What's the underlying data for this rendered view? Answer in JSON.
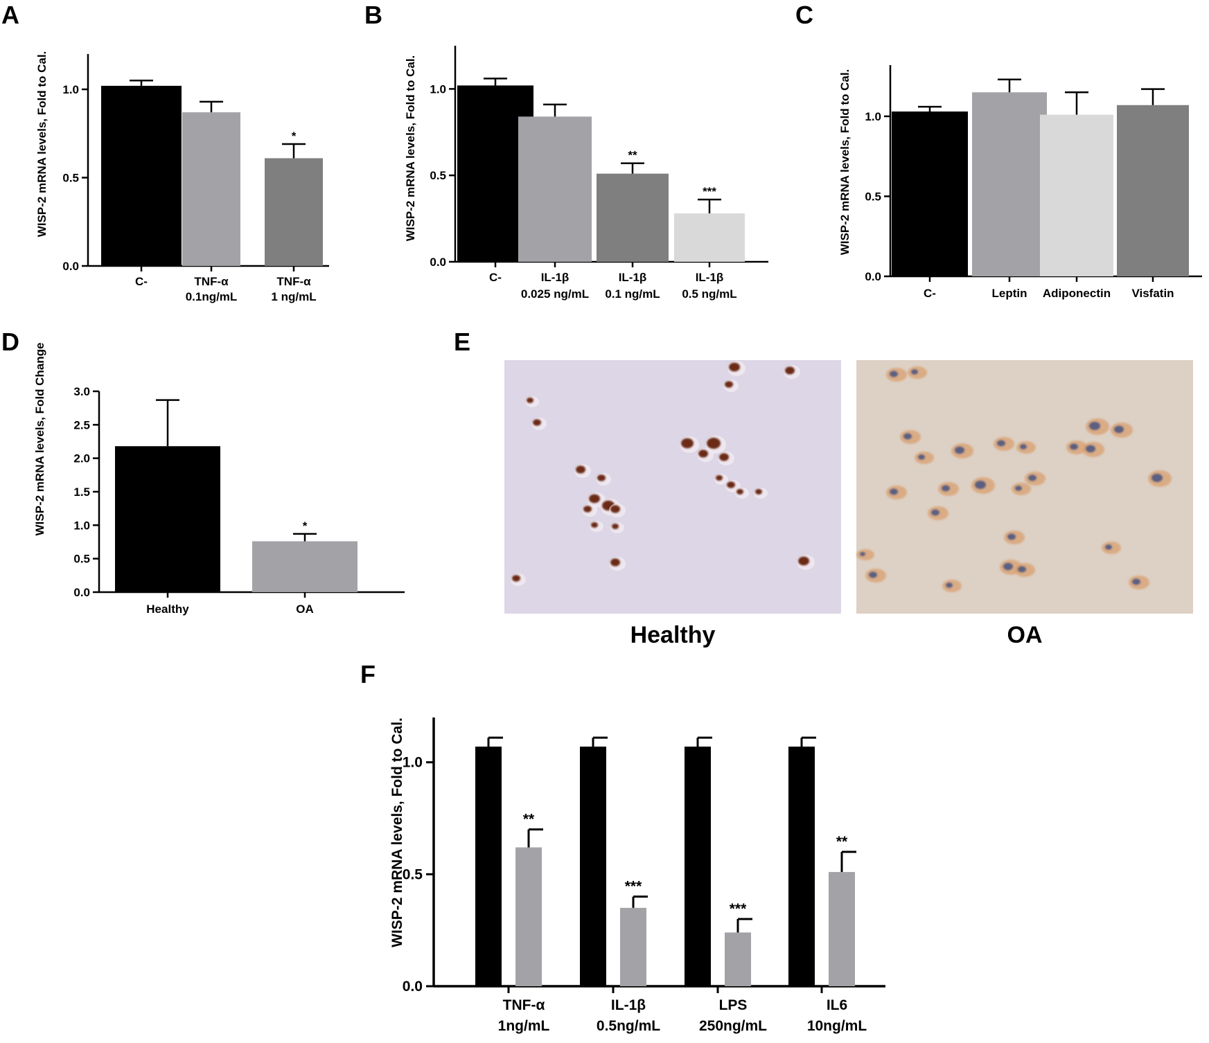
{
  "chart_data": [
    {
      "panel": "A",
      "type": "bar",
      "ylabel": "WISP-2 mRNA levels, Fold to Cal.",
      "ylim": [
        0,
        1.2
      ],
      "yticks": [
        "0.0",
        "0.5",
        "1.0"
      ],
      "bars": [
        {
          "label": [
            "C-"
          ],
          "value": 1.02,
          "error": 0.03,
          "color": "#000000",
          "sig": ""
        },
        {
          "label": [
            "TNF-α",
            "0.1ng/mL"
          ],
          "value": 0.87,
          "error": 0.06,
          "color": "#a3a3a7",
          "sig": ""
        },
        {
          "label": [
            "TNF-α",
            "1 ng/mL"
          ],
          "value": 0.61,
          "error": 0.08,
          "color": "#7f7f7f",
          "sig": "*"
        }
      ]
    },
    {
      "panel": "B",
      "type": "bar",
      "ylabel": "WISP-2 mRNA levels, Fold to Cal.",
      "ylim": [
        0,
        1.25
      ],
      "yticks": [
        "0.0",
        "0.5",
        "1.0"
      ],
      "bars": [
        {
          "label": [
            "C-"
          ],
          "value": 1.02,
          "error": 0.04,
          "color": "#000000",
          "sig": ""
        },
        {
          "label": [
            "IL-1β",
            "0.025 ng/mL"
          ],
          "value": 0.84,
          "error": 0.07,
          "color": "#a3a3a7",
          "sig": ""
        },
        {
          "label": [
            "IL-1β",
            "0.1 ng/mL"
          ],
          "value": 0.51,
          "error": 0.06,
          "color": "#7f7f7f",
          "sig": "**"
        },
        {
          "label": [
            "IL-1β",
            "0.5 ng/mL"
          ],
          "value": 0.28,
          "error": 0.08,
          "color": "#d9d9d9",
          "sig": "***"
        }
      ]
    },
    {
      "panel": "C",
      "type": "bar",
      "ylabel": "WISP-2 mRNA levels, Fold to Cal.",
      "ylim": [
        0,
        1.32
      ],
      "yticks": [
        "0.0",
        "0.5",
        "1.0"
      ],
      "bars": [
        {
          "label": [
            "C-"
          ],
          "value": 1.03,
          "error": 0.03,
          "color": "#000000",
          "sig": ""
        },
        {
          "label": [
            "Leptin"
          ],
          "value": 1.15,
          "error": 0.08,
          "color": "#a3a3a7",
          "sig": ""
        },
        {
          "label": [
            "Adiponectin"
          ],
          "value": 1.01,
          "error": 0.14,
          "color": "#d9d9d9",
          "sig": ""
        },
        {
          "label": [
            "Visfatin"
          ],
          "value": 1.07,
          "error": 0.1,
          "color": "#7f7f7f",
          "sig": ""
        }
      ]
    },
    {
      "panel": "D",
      "type": "bar",
      "ylabel": "WISP-2 mRNA levels, Fold Change",
      "ylim": [
        0,
        3.0
      ],
      "yticks": [
        "0.0",
        "0.5",
        "1.0",
        "1.5",
        "2.0",
        "2.5",
        "3.0"
      ],
      "bars": [
        {
          "label": [
            "Healthy"
          ],
          "value": 2.18,
          "error": 0.69,
          "color": "#000000",
          "sig": ""
        },
        {
          "label": [
            "OA"
          ],
          "value": 0.76,
          "error": 0.11,
          "color": "#a3a3a7",
          "sig": "*"
        }
      ]
    },
    {
      "panel": "F",
      "type": "bar",
      "ylabel": "WISP-2 mRNA levels, Fold to Cal.",
      "ylim": [
        0,
        1.2
      ],
      "yticks": [
        "0.0",
        "0.5",
        "1.0"
      ],
      "groups": [
        {
          "label": [
            "TNF-α",
            "1ng/mL"
          ],
          "bars": [
            {
              "value": 1.07,
              "error": 0.04,
              "color": "#000000",
              "sig": ""
            },
            {
              "value": 0.62,
              "error": 0.08,
              "color": "#a3a3a7",
              "sig": "**"
            }
          ]
        },
        {
          "label": [
            "IL-1β",
            "0.5ng/mL"
          ],
          "bars": [
            {
              "value": 1.07,
              "error": 0.04,
              "color": "#000000",
              "sig": ""
            },
            {
              "value": 0.35,
              "error": 0.05,
              "color": "#a3a3a7",
              "sig": "***"
            }
          ]
        },
        {
          "label": [
            "LPS",
            "250ng/mL"
          ],
          "bars": [
            {
              "value": 1.07,
              "error": 0.04,
              "color": "#000000",
              "sig": ""
            },
            {
              "value": 0.24,
              "error": 0.06,
              "color": "#a3a3a7",
              "sig": "***"
            }
          ]
        },
        {
          "label": [
            "IL6",
            "10ng/mL"
          ],
          "bars": [
            {
              "value": 1.07,
              "error": 0.04,
              "color": "#000000",
              "sig": ""
            },
            {
              "value": 0.51,
              "error": 0.09,
              "color": "#a3a3a7",
              "sig": "**"
            }
          ]
        }
      ]
    }
  ],
  "micrographs": {
    "panel": "E",
    "images": [
      {
        "caption": "Healthy",
        "background": "#dcd6e6",
        "cell_color": "#6b2a12"
      },
      {
        "caption": "OA",
        "background": "#ddd0c4",
        "cell_color": "#5c5f80"
      }
    ]
  }
}
